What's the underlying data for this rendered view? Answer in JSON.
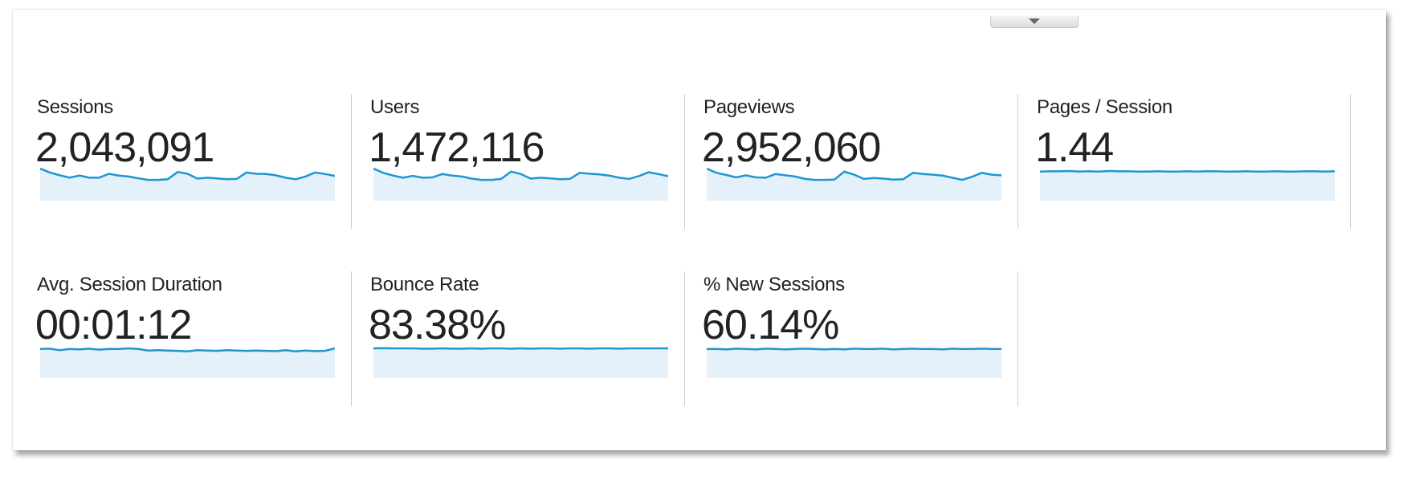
{
  "colors": {
    "line": "#1e96d2",
    "fill": "#e4f0fa",
    "text": "#222222"
  },
  "toggle": {
    "icon": "triangle-down-icon"
  },
  "metrics": [
    {
      "label": "Sessions",
      "value": "2,043,091",
      "trend": [
        1.0,
        0.87,
        0.78,
        0.7,
        0.77,
        0.7,
        0.7,
        0.83,
        0.77,
        0.74,
        0.68,
        0.63,
        0.63,
        0.65,
        0.89,
        0.83,
        0.67,
        0.7,
        0.68,
        0.65,
        0.66,
        0.87,
        0.83,
        0.82,
        0.78,
        0.7,
        0.65,
        0.74,
        0.87,
        0.82,
        0.76
      ]
    },
    {
      "label": "Users",
      "value": "1,472,116",
      "trend": [
        1.0,
        0.86,
        0.77,
        0.7,
        0.76,
        0.7,
        0.71,
        0.82,
        0.77,
        0.74,
        0.67,
        0.63,
        0.63,
        0.66,
        0.9,
        0.82,
        0.67,
        0.7,
        0.68,
        0.65,
        0.66,
        0.86,
        0.83,
        0.81,
        0.77,
        0.7,
        0.66,
        0.75,
        0.88,
        0.82,
        0.75
      ]
    },
    {
      "label": "Pageviews",
      "value": "2,952,060",
      "trend": [
        1.0,
        0.86,
        0.79,
        0.71,
        0.78,
        0.71,
        0.7,
        0.82,
        0.78,
        0.74,
        0.66,
        0.63,
        0.63,
        0.64,
        0.9,
        0.8,
        0.66,
        0.69,
        0.67,
        0.64,
        0.65,
        0.86,
        0.82,
        0.8,
        0.77,
        0.7,
        0.63,
        0.73,
        0.86,
        0.8,
        0.78
      ]
    },
    {
      "label": "Pages / Session",
      "value": "1.44",
      "trend": [
        0.9,
        0.91,
        0.91,
        0.92,
        0.9,
        0.91,
        0.9,
        0.92,
        0.91,
        0.91,
        0.9,
        0.9,
        0.91,
        0.9,
        0.9,
        0.91,
        0.9,
        0.91,
        0.91,
        0.9,
        0.9,
        0.91,
        0.9,
        0.9,
        0.91,
        0.9,
        0.9,
        0.91,
        0.91,
        0.9,
        0.91
      ]
    },
    {
      "label": "Avg. Session Duration",
      "value": "00:01:12",
      "trend": [
        0.9,
        0.91,
        0.86,
        0.9,
        0.89,
        0.91,
        0.88,
        0.9,
        0.9,
        0.92,
        0.9,
        0.85,
        0.86,
        0.85,
        0.84,
        0.82,
        0.86,
        0.85,
        0.84,
        0.86,
        0.85,
        0.84,
        0.85,
        0.84,
        0.83,
        0.86,
        0.82,
        0.85,
        0.83,
        0.84,
        0.92
      ]
    },
    {
      "label": "Bounce Rate",
      "value": "83.38%",
      "trend": [
        0.92,
        0.93,
        0.92,
        0.92,
        0.92,
        0.91,
        0.91,
        0.92,
        0.91,
        0.91,
        0.92,
        0.91,
        0.92,
        0.92,
        0.91,
        0.92,
        0.91,
        0.92,
        0.92,
        0.91,
        0.92,
        0.92,
        0.91,
        0.92,
        0.92,
        0.91,
        0.92,
        0.92,
        0.92,
        0.92,
        0.92
      ]
    },
    {
      "label": "% New Sessions",
      "value": "60.14%",
      "trend": [
        0.9,
        0.9,
        0.89,
        0.91,
        0.9,
        0.89,
        0.91,
        0.9,
        0.89,
        0.9,
        0.91,
        0.9,
        0.89,
        0.9,
        0.89,
        0.91,
        0.9,
        0.9,
        0.91,
        0.89,
        0.9,
        0.91,
        0.9,
        0.9,
        0.89,
        0.91,
        0.9,
        0.9,
        0.91,
        0.9,
        0.9
      ]
    }
  ]
}
